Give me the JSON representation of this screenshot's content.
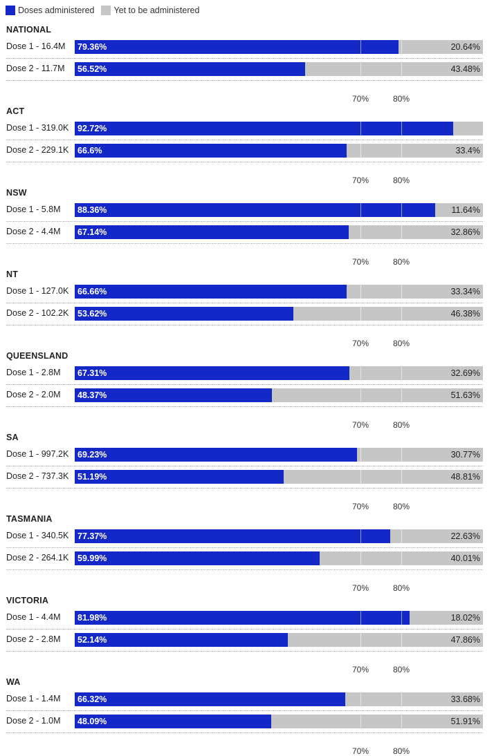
{
  "colors": {
    "administered": "#1428c8",
    "remaining": "#c6c6c6"
  },
  "chart_data": {
    "type": "bar",
    "stacked": true,
    "orientation": "horizontal",
    "legend": [
      {
        "name": "Doses administered",
        "color": "#1428c8"
      },
      {
        "name": "Yet to be administered",
        "color": "#c6c6c6"
      }
    ],
    "reference_lines": [
      70,
      80
    ],
    "reference_labels": [
      "70%",
      "80%"
    ],
    "xlim": [
      0,
      100
    ],
    "groups": [
      {
        "name": "NATIONAL",
        "rows": [
          {
            "label": "Dose 1 - 16.4M",
            "value": 79.36,
            "value_text": "79.36%",
            "remaining_text": "20.64%"
          },
          {
            "label": "Dose 2 - 11.7M",
            "value": 56.52,
            "value_text": "56.52%",
            "remaining_text": "43.48%"
          }
        ]
      },
      {
        "name": "ACT",
        "rows": [
          {
            "label": "Dose 1 - 319.0K",
            "value": 92.72,
            "value_text": "92.72%",
            "remaining_text": ""
          },
          {
            "label": "Dose 2 - 229.1K",
            "value": 66.6,
            "value_text": "66.6%",
            "remaining_text": "33.4%"
          }
        ]
      },
      {
        "name": "NSW",
        "rows": [
          {
            "label": "Dose 1 - 5.8M",
            "value": 88.36,
            "value_text": "88.36%",
            "remaining_text": "11.64%"
          },
          {
            "label": "Dose 2 - 4.4M",
            "value": 67.14,
            "value_text": "67.14%",
            "remaining_text": "32.86%"
          }
        ]
      },
      {
        "name": "NT",
        "rows": [
          {
            "label": "Dose 1 - 127.0K",
            "value": 66.66,
            "value_text": "66.66%",
            "remaining_text": "33.34%"
          },
          {
            "label": "Dose 2 - 102.2K",
            "value": 53.62,
            "value_text": "53.62%",
            "remaining_text": "46.38%"
          }
        ]
      },
      {
        "name": "QUEENSLAND",
        "rows": [
          {
            "label": "Dose 1 - 2.8M",
            "value": 67.31,
            "value_text": "67.31%",
            "remaining_text": "32.69%"
          },
          {
            "label": "Dose 2 - 2.0M",
            "value": 48.37,
            "value_text": "48.37%",
            "remaining_text": "51.63%"
          }
        ]
      },
      {
        "name": "SA",
        "rows": [
          {
            "label": "Dose 1 - 997.2K",
            "value": 69.23,
            "value_text": "69.23%",
            "remaining_text": "30.77%"
          },
          {
            "label": "Dose 2 - 737.3K",
            "value": 51.19,
            "value_text": "51.19%",
            "remaining_text": "48.81%"
          }
        ]
      },
      {
        "name": "TASMANIA",
        "rows": [
          {
            "label": "Dose 1 - 340.5K",
            "value": 77.37,
            "value_text": "77.37%",
            "remaining_text": "22.63%"
          },
          {
            "label": "Dose 2 - 264.1K",
            "value": 59.99,
            "value_text": "59.99%",
            "remaining_text": "40.01%"
          }
        ]
      },
      {
        "name": "VICTORIA",
        "rows": [
          {
            "label": "Dose 1 - 4.4M",
            "value": 81.98,
            "value_text": "81.98%",
            "remaining_text": "18.02%"
          },
          {
            "label": "Dose 2 - 2.8M",
            "value": 52.14,
            "value_text": "52.14%",
            "remaining_text": "47.86%"
          }
        ]
      },
      {
        "name": "WA",
        "rows": [
          {
            "label": "Dose 1 - 1.4M",
            "value": 66.32,
            "value_text": "66.32%",
            "remaining_text": "33.68%"
          },
          {
            "label": "Dose 2 - 1.0M",
            "value": 48.09,
            "value_text": "48.09%",
            "remaining_text": "51.91%"
          }
        ]
      }
    ]
  }
}
